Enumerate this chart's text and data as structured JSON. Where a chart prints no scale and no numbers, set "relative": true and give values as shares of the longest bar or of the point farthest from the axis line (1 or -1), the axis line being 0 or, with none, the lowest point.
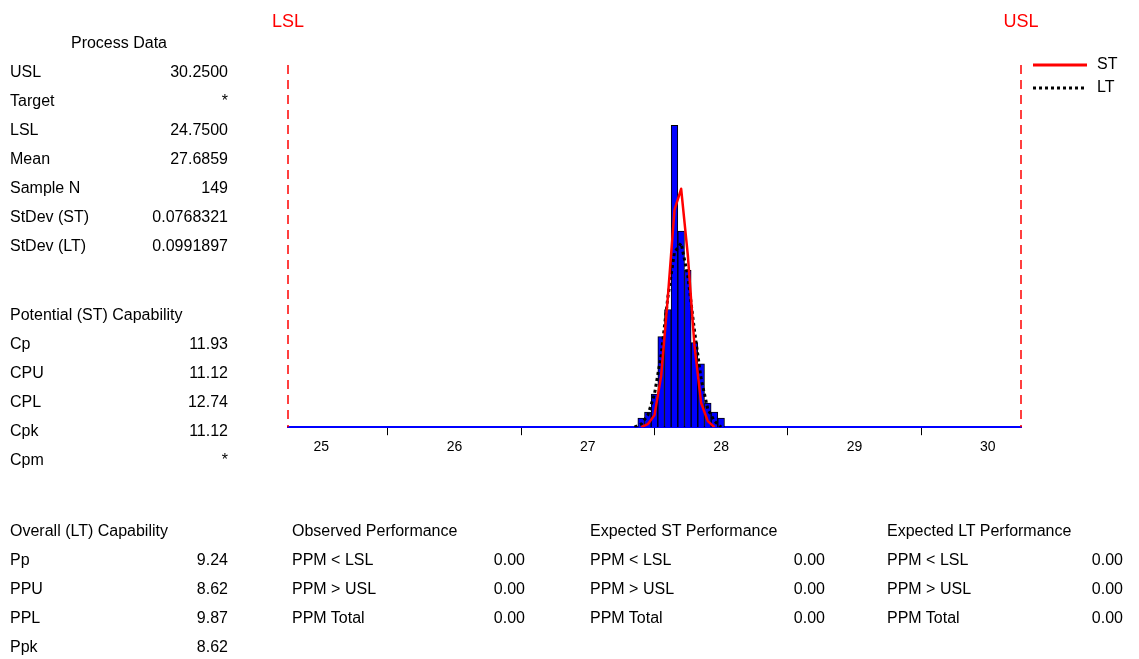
{
  "chart_data": {
    "type": "histogram",
    "relative": true,
    "xlim": [
      24.75,
      30.25
    ],
    "xticks": [
      25,
      26,
      27,
      28,
      29,
      30
    ],
    "grid": false,
    "legend": "top right",
    "marker": "none",
    "series": [
      {
        "color": "#0000ff",
        "bins": [
          27.375,
          27.425,
          27.475,
          27.525,
          27.575,
          27.625,
          27.675,
          27.725,
          27.775,
          27.825,
          27.875,
          27.925,
          27.975,
          28.025
        ],
        "values": [
          0.03,
          0.05,
          0.11,
          0.3,
          0.39,
          1,
          0.65,
          0.52,
          0.28,
          0.21,
          0.08,
          0.05,
          0.03
        ]
      },
      {
        "type": "line",
        "name": "ST",
        "color": "#ff0000",
        "line_style": "solid",
        "x": [
          27.4,
          27.45,
          27.5,
          27.55,
          27.6,
          27.65,
          27.7,
          27.75,
          27.8,
          27.85,
          27.9,
          27.95
        ],
        "values": [
          0.0,
          0.01,
          0.04,
          0.17,
          0.43,
          0.72,
          0.79,
          0.57,
          0.27,
          0.08,
          0.02,
          0.0
        ]
      },
      {
        "type": "line",
        "name": "LT",
        "color": "#000000",
        "line_style": "dotted",
        "x": [
          27.35,
          27.4,
          27.45,
          27.5,
          27.55,
          27.6,
          27.65,
          27.7,
          27.75,
          27.8,
          27.85,
          27.9,
          27.95,
          28.0
        ],
        "values": [
          0.0,
          0.01,
          0.04,
          0.11,
          0.24,
          0.43,
          0.58,
          0.61,
          0.5,
          0.32,
          0.16,
          0.06,
          0.02,
          0.0
        ]
      }
    ],
    "ref_lines": [
      {
        "axis": "x",
        "value": 24.75,
        "label": "LSL",
        "color": "#ff0000",
        "line_style": "dashed"
      },
      {
        "axis": "x",
        "value": 30.25,
        "label": "USL",
        "color": "#ff0000",
        "line_style": "dashed"
      }
    ],
    "annotations": [
      "Process Data",
      "USL",
      "30.2500",
      "Target",
      "*",
      "LSL",
      "24.7500",
      "Mean",
      "27.6859",
      "Sample N",
      "149",
      "StDev (ST)",
      "0.0768321",
      "StDev (LT)",
      "0.0991897",
      "Potential (ST) Capability",
      "Cp",
      "11.93",
      "CPU",
      "11.12",
      "CPL",
      "12.74",
      "Cpk",
      "11.12",
      "Cpm",
      "*",
      "Overall (LT) Capability",
      "Pp",
      "9.24",
      "PPU",
      "8.62",
      "PPL",
      "9.87",
      "Ppk",
      "8.62",
      "Observed Performance",
      "PPM < LSL",
      "0.00",
      "PPM > USL",
      "0.00",
      "PPM Total",
      "0.00",
      "Expected ST Performance",
      "PPM < LSL",
      "0.00",
      "PPM > USL",
      "0.00",
      "PPM Total",
      "0.00",
      "Expected LT Performance",
      "PPM < LSL",
      "0.00",
      "PPM > USL",
      "0.00",
      "PPM Total",
      "0.00"
    ]
  }
}
